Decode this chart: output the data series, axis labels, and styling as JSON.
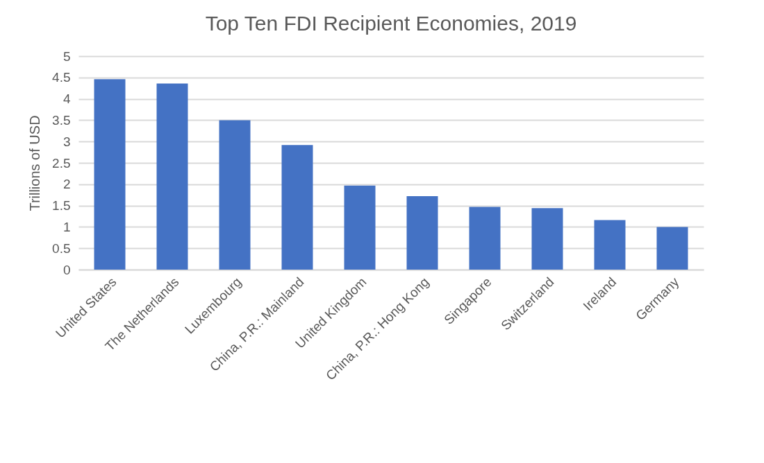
{
  "chart_data": {
    "type": "bar",
    "title": "Top Ten FDI Recipient Economies, 2019",
    "ylabel": "Trillions of USD",
    "categories": [
      "United States",
      "The Netherlands",
      "Luxembourg",
      "China, P.R.: Mainland",
      "United Kingdom",
      "China, P.R.: Hong Kong",
      "Singapore",
      "Switzerland",
      "Ireland",
      "Germany"
    ],
    "values": [
      4.46,
      4.36,
      3.5,
      2.92,
      1.97,
      1.72,
      1.47,
      1.44,
      1.16,
      1.0
    ],
    "color": "#4472c4",
    "ylim": [
      0,
      5
    ],
    "yticks": [
      0,
      0.5,
      1,
      1.5,
      2,
      2.5,
      3,
      3.5,
      4,
      4.5,
      5
    ],
    "grid": true
  }
}
